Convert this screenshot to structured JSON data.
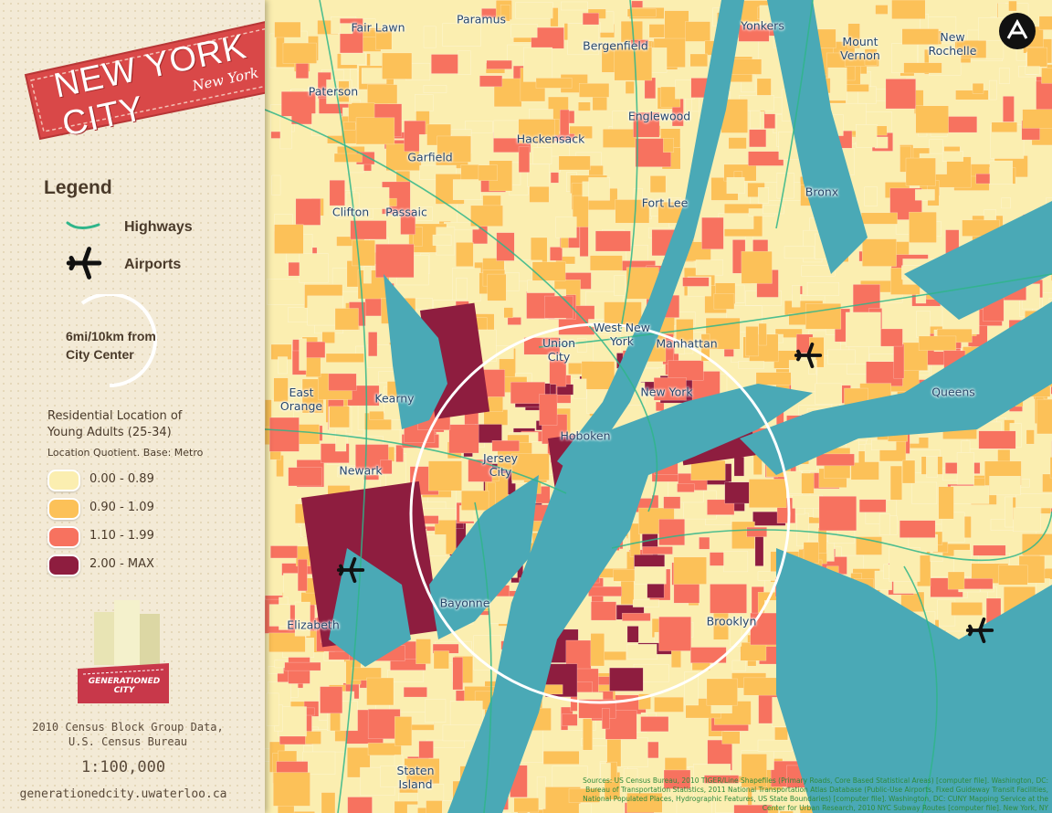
{
  "header": {
    "title": "NEW YORK CITY",
    "subtitle": "New York"
  },
  "legend": {
    "title": "Legend",
    "highways": "Highways",
    "airports": "Airports",
    "radius": "6mi/10km from City Center"
  },
  "classes": {
    "title": "Residential Location of Young Adults (25-34)",
    "subtitle": "Location Quotient. Base: Metro",
    "items": [
      {
        "label": "0.00 - 0.89",
        "color": "#fbeeb0"
      },
      {
        "label": "0.90 - 1.09",
        "color": "#fcc158"
      },
      {
        "label": "1.10 - 1.99",
        "color": "#f7725f"
      },
      {
        "label": "2.00 - MAX",
        "color": "#8e1d3f"
      }
    ]
  },
  "logo": "GENERATIONED CITY",
  "source": "2010 Census Block Group Data, U.S. Census Bureau",
  "scale": "1:100,000",
  "url": "generationedcity.uwaterloo.ca",
  "map": {
    "places": [
      "Fair Lawn",
      "Paramus",
      "Yonkers",
      "Mount Vernon",
      "New Rochelle",
      "Bergenfield",
      "Paterson",
      "Englewood",
      "Hackensack",
      "Garfield",
      "Fort Lee",
      "Bronx",
      "Clifton",
      "Passaic",
      "West New York",
      "Union City",
      "Manhattan",
      "East Orange",
      "Kearny",
      "New York",
      "Queens",
      "Hoboken",
      "Jersey City",
      "Newark",
      "Bayonne",
      "Brooklyn",
      "Elizabeth",
      "Staten Island"
    ],
    "credits": "Sources: US Census Bureau, 2010 TIGER/Line Shapefiles (Primary Roads, Core Based Statistical Areas) [computer file]. Washington, DC: Bureau of Transportation Statistics, 2011 National Transportation Atlas Database (Public-Use Airports, Fixed Guideway Transit Facilities, National Populated Places, Hydrographic Features, US State Boundaries) [computer file]. Washington, DC: CUNY Mapping Service at the Center for Urban Research, 2010 NYC Subway Routes [computer file]. New York, NY"
  }
}
